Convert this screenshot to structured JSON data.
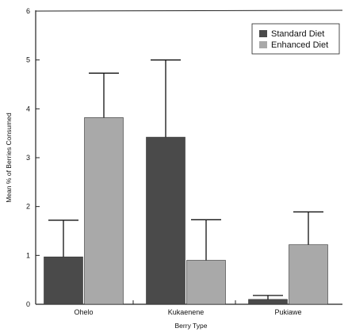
{
  "chart_data": {
    "type": "bar",
    "title": "",
    "xlabel": "Berry Type",
    "ylabel": "Mean % of Berries Consumed",
    "categories": [
      "Ohelo",
      "Kukaenene",
      "Pukiawe"
    ],
    "ylim": [
      0,
      6
    ],
    "yticks": [
      "0",
      "1",
      "2",
      "3",
      "4",
      "5",
      "6"
    ],
    "series": [
      {
        "name": "Standard Diet",
        "color": "#4a4a4a",
        "values": [
          0.97,
          3.42,
          0.1
        ],
        "error_upper": [
          1.72,
          5.0,
          0.18
        ]
      },
      {
        "name": "Enhanced Diet",
        "color": "#a9a9a9",
        "values": [
          3.82,
          0.9,
          1.22
        ],
        "error_upper": [
          4.73,
          1.73,
          1.89
        ]
      }
    ],
    "error_bars": "upper",
    "legend_position": "top-right",
    "grid": false
  }
}
